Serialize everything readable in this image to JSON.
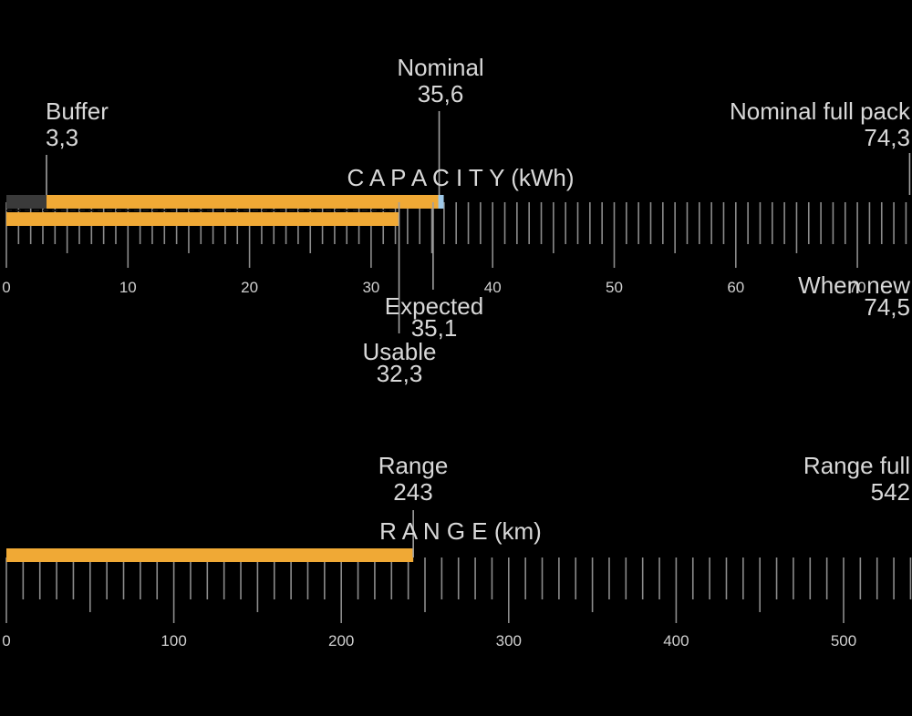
{
  "colors": {
    "background": "#000000",
    "bar_fill": "#f0a935",
    "buffer_fill": "#3a3a3a",
    "tick": "#8c8c8c",
    "marker_line": "#a0a0a0",
    "tick_label": "#cfcfcf",
    "text": "#d8d8d8",
    "nominal_tip": "#9ec8e8"
  },
  "chart_data": [
    {
      "type": "bar",
      "title": "C A P A C I T Y (kWh)",
      "axis": {
        "min": 0,
        "max": 74.5,
        "major_step": 10,
        "minor_step": 1,
        "tick_labels": [
          "0",
          "10",
          "20",
          "30",
          "40",
          "50",
          "60",
          "70"
        ]
      },
      "bars": [
        {
          "name": "Nominal",
          "start": 0,
          "end": 35.6,
          "buffer_end": 3.3
        },
        {
          "name": "Usable",
          "start": 0,
          "end": 32.3
        }
      ],
      "markers": [
        {
          "id": "buffer",
          "label": "Buffer",
          "value_text": "3,3",
          "value": 3.3
        },
        {
          "id": "nominal",
          "label": "Nominal",
          "value_text": "35,6",
          "value": 35.6
        },
        {
          "id": "nominal-full",
          "label": "Nominal full pack",
          "value_text": "74,3",
          "value": 74.3
        },
        {
          "id": "expected",
          "label": "Expected",
          "value_text": "35,1",
          "value": 35.1
        },
        {
          "id": "usable",
          "label": "Usable",
          "value_text": "32,3",
          "value": 32.3
        },
        {
          "id": "when-new",
          "label": "When new",
          "value_text": "74,5",
          "value": 74.5
        }
      ]
    },
    {
      "type": "bar",
      "title": "R A N G E (km)",
      "axis": {
        "min": 0,
        "max": 542,
        "major_step": 100,
        "minor_step": 10,
        "tick_labels": [
          "0",
          "100",
          "200",
          "300",
          "400",
          "500"
        ]
      },
      "bars": [
        {
          "name": "Range",
          "start": 0,
          "end": 243
        }
      ],
      "markers": [
        {
          "id": "range",
          "label": "Range",
          "value_text": "243",
          "value": 243
        },
        {
          "id": "range-full",
          "label": "Range full",
          "value_text": "542",
          "value": 542
        }
      ]
    }
  ]
}
